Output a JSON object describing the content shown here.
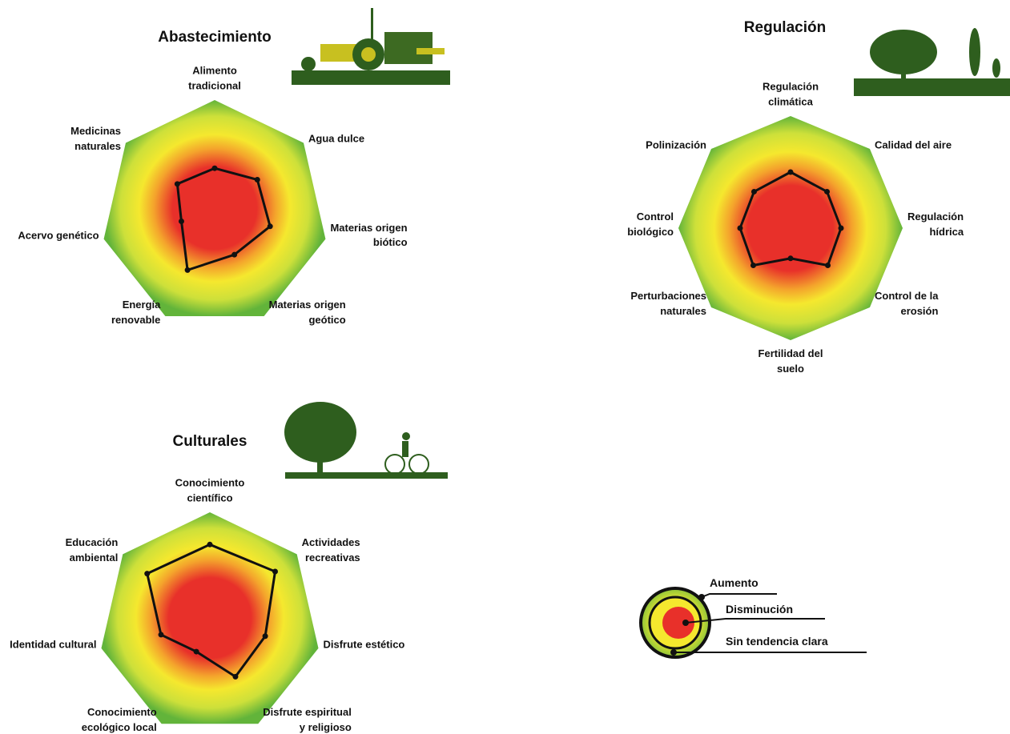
{
  "chart_data": [
    {
      "type": "radar",
      "title": "Abastecimiento",
      "categories": [
        "Alimento\ntradicional",
        "Agua dulce",
        "Materias origen\nbiótico",
        "Materias origen\ngeótico",
        "Energía\nrenovable",
        "Acervo genético",
        "Medicinas\nnaturales"
      ],
      "values": [
        0.4,
        0.48,
        0.5,
        0.4,
        0.55,
        0.3,
        0.42
      ],
      "rlim": [
        0,
        1
      ],
      "color": "#111111"
    },
    {
      "type": "radar",
      "title": "Regulación",
      "categories": [
        "Regulación\nclimática",
        "Calidad del aire",
        "Regulación\nhídrica",
        "Control de la\nerosión",
        "Fertilidad del\nsuelo",
        "Perturbaciones\nnaturales",
        "Control\nbiológico",
        "Polinización"
      ],
      "values": [
        0.5,
        0.46,
        0.45,
        0.47,
        0.27,
        0.47,
        0.45,
        0.46
      ],
      "rlim": [
        0,
        1
      ],
      "color": "#111111"
    },
    {
      "type": "radar",
      "title": "Culturales",
      "categories": [
        "Conocimiento\ncientífico",
        "Actividades\nrecreativas",
        "Disfrute estético",
        "Disfrute espiritual\ny religioso",
        "Conocimiento\necológico local",
        "Identidad cultural",
        "Educación\nambiental"
      ],
      "values": [
        0.71,
        0.75,
        0.51,
        0.53,
        0.28,
        0.45,
        0.72
      ],
      "rlim": [
        0,
        1
      ],
      "color": "#111111"
    }
  ],
  "legend": {
    "items": [
      "Aumento",
      "Disminución",
      "Sin tendencia clara"
    ]
  }
}
